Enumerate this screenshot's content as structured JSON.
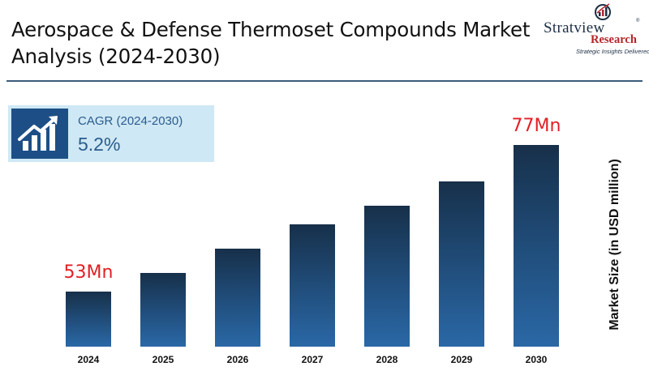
{
  "header": {
    "title": "Aerospace & Defense Thermoset Compounds Market Analysis (2024-2030)"
  },
  "logo": {
    "name": "Stratview",
    "reg": "®",
    "research": "Research",
    "tagline": "Strategic Insights Delivered"
  },
  "cagr": {
    "label": "CAGR (2024-2030)",
    "value": "5.2%",
    "icon": "growth-chart-icon"
  },
  "colors": {
    "bar_top": "#17304a",
    "bar_bottom": "#2a68a6",
    "annotation": "#e21f26",
    "cagr_box": "#cfe8f5",
    "divider": "#3d5c7a"
  },
  "chart_data": {
    "type": "bar",
    "categories": [
      "2024",
      "2025",
      "2026",
      "2027",
      "2028",
      "2029",
      "2030"
    ],
    "values": [
      53,
      56,
      60,
      64,
      67,
      71,
      77
    ],
    "ylabel": "Market Size (in USD million)",
    "ylim": [
      44,
      78
    ],
    "grid": false,
    "annotations": [
      {
        "category": "2024",
        "text": "53Mn"
      },
      {
        "category": "2030",
        "text": "77Mn"
      }
    ]
  }
}
